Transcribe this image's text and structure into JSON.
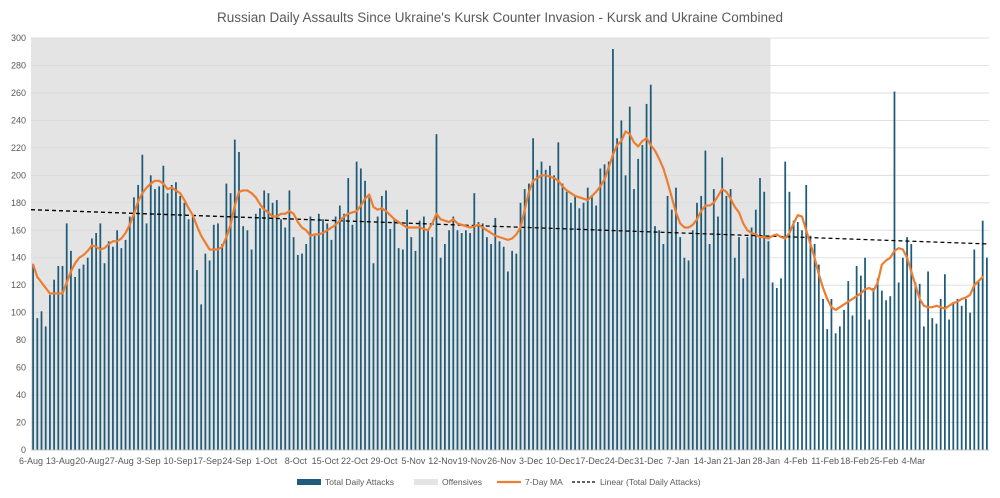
{
  "chart_data": {
    "type": "bar",
    "title": "Russian Daily Assaults Since Ukraine's Kursk Counter Invasion - Kursk and Ukraine Combined",
    "xlabel": "",
    "ylabel": "",
    "ylim": [
      0,
      300
    ],
    "y_ticks": [
      0,
      20,
      40,
      60,
      80,
      100,
      120,
      140,
      160,
      180,
      200,
      220,
      240,
      260,
      280,
      300
    ],
    "start_date": "6-Aug",
    "x_tick_labels": [
      "6-Aug",
      "13-Aug",
      "20-Aug",
      "27-Aug",
      "3-Sep",
      "10-Sep",
      "17-Sep",
      "24-Sep",
      "1-Oct",
      "8-Oct",
      "15-Oct",
      "22-Oct",
      "29-Oct",
      "5-Nov",
      "12-Nov",
      "19-Nov",
      "26-Nov",
      "3-Dec",
      "10-Dec",
      "17-Dec",
      "24-Dec",
      "31-Dec",
      "7-Jan",
      "14-Jan",
      "21-Jan",
      "28-Jan",
      "4-Feb",
      "11-Feb",
      "18-Feb",
      "25-Feb",
      "4-Mar"
    ],
    "x_tick_interval_days": 7,
    "offensive_period": {
      "start_day": 0,
      "end_day": 175
    },
    "series": [
      {
        "name": "Total Daily Attacks",
        "kind": "bar",
        "color": "#1f5c7a",
        "values": [
          135,
          96,
          101,
          90,
          113,
          124,
          134,
          134,
          165,
          145,
          126,
          132,
          135,
          140,
          154,
          158,
          165,
          136,
          152,
          148,
          160,
          147,
          153,
          170,
          184,
          193,
          215,
          165,
          200,
          190,
          192,
          207,
          187,
          193,
          195,
          185,
          180,
          168,
          170,
          131,
          106,
          143,
          138,
          164,
          165,
          150,
          194,
          187,
          226,
          217,
          163,
          160,
          146,
          172,
          176,
          189,
          187,
          180,
          182,
          168,
          162,
          189,
          155,
          142,
          143,
          150,
          170,
          156,
          172,
          168,
          165,
          153,
          170,
          178,
          172,
          198,
          164,
          210,
          205,
          196,
          184,
          136,
          170,
          185,
          189,
          161,
          168,
          147,
          146,
          175,
          155,
          145,
          167,
          170,
          160,
          155,
          230,
          140,
          150,
          160,
          170,
          160,
          158,
          160,
          158,
          187,
          166,
          165,
          155,
          150,
          169,
          152,
          148,
          130,
          145,
          143,
          180,
          190,
          194,
          227,
          204,
          210,
          204,
          207,
          200,
          224,
          194,
          188,
          180,
          185,
          176,
          180,
          191,
          185,
          178,
          205,
          208,
          210,
          292,
          227,
          240,
          200,
          250,
          190,
          212,
          222,
          252,
          266,
          163,
          160,
          150,
          185,
          175,
          191,
          155,
          140,
          138,
          160,
          180,
          185,
          218,
          150,
          190,
          170,
          213,
          185,
          190,
          140,
          155,
          125,
          155,
          162,
          175,
          198,
          188,
          152,
          122,
          118,
          125,
          210,
          188,
          167,
          166,
          160,
          193,
          156,
          150,
          135,
          110,
          88,
          110,
          85,
          90,
          102,
          123,
          98,
          134,
          127,
          140,
          95,
          118,
          125,
          116,
          109,
          112,
          261,
          122,
          140,
          155,
          150,
          122,
          121,
          90,
          130,
          96,
          92,
          110,
          128,
          95,
          107,
          110,
          105,
          110,
          100,
          146,
          123,
          167,
          140
        ]
      },
      {
        "name": "Offensives",
        "kind": "area",
        "color": "#e4e4e4"
      },
      {
        "name": "7-Day MA",
        "kind": "line",
        "color": "#ed7d31",
        "values": [
          135,
          126,
          122,
          118,
          114,
          114,
          114,
          114,
          122,
          130,
          136,
          140,
          142,
          145,
          149,
          148,
          146,
          147,
          150,
          152,
          152,
          154,
          158,
          164,
          172,
          181,
          187,
          191,
          194,
          196,
          196,
          194,
          190,
          191,
          189,
          187,
          182,
          176,
          171,
          163,
          156,
          151,
          146,
          146,
          146,
          148,
          155,
          164,
          178,
          188,
          189,
          189,
          187,
          184,
          179,
          175,
          173,
          170,
          170,
          172,
          172,
          174,
          172,
          166,
          162,
          160,
          156,
          157,
          157,
          158,
          160,
          162,
          164,
          167,
          170,
          172,
          173,
          174,
          178,
          183,
          186,
          177,
          175,
          176,
          174,
          171,
          168,
          166,
          164,
          162,
          162,
          162,
          162,
          161,
          160,
          165,
          172,
          168,
          167,
          166,
          168,
          165,
          164,
          163,
          162,
          163,
          164,
          162,
          160,
          158,
          156,
          155,
          154,
          153,
          154,
          157,
          162,
          175,
          188,
          196,
          198,
          200,
          200,
          199,
          198,
          196,
          192,
          189,
          187,
          185,
          184,
          183,
          182,
          185,
          188,
          192,
          197,
          206,
          215,
          222,
          225,
          232,
          230,
          224,
          221,
          225,
          227,
          222,
          218,
          212,
          205,
          195,
          184,
          173,
          165,
          162,
          162,
          164,
          168,
          174,
          178,
          178,
          180,
          185,
          190,
          188,
          183,
          177,
          173,
          165,
          160,
          158,
          157,
          155,
          155,
          154,
          156,
          157,
          155,
          154,
          158,
          165,
          171,
          170,
          160,
          150,
          140,
          128,
          118,
          110,
          104,
          102,
          104,
          106,
          108,
          110,
          112,
          114,
          117,
          118,
          116,
          122,
          135,
          138,
          140,
          145,
          147,
          146,
          140,
          130,
          120,
          110,
          105,
          104,
          104,
          105,
          104,
          103,
          105,
          107,
          108,
          110,
          111,
          113,
          120,
          123,
          126
        ]
      },
      {
        "name": "Linear (Total Daily Attacks)",
        "kind": "trend",
        "color": "#000000",
        "start_value": 175,
        "end_value": 150
      }
    ],
    "legend_position": "bottom"
  }
}
